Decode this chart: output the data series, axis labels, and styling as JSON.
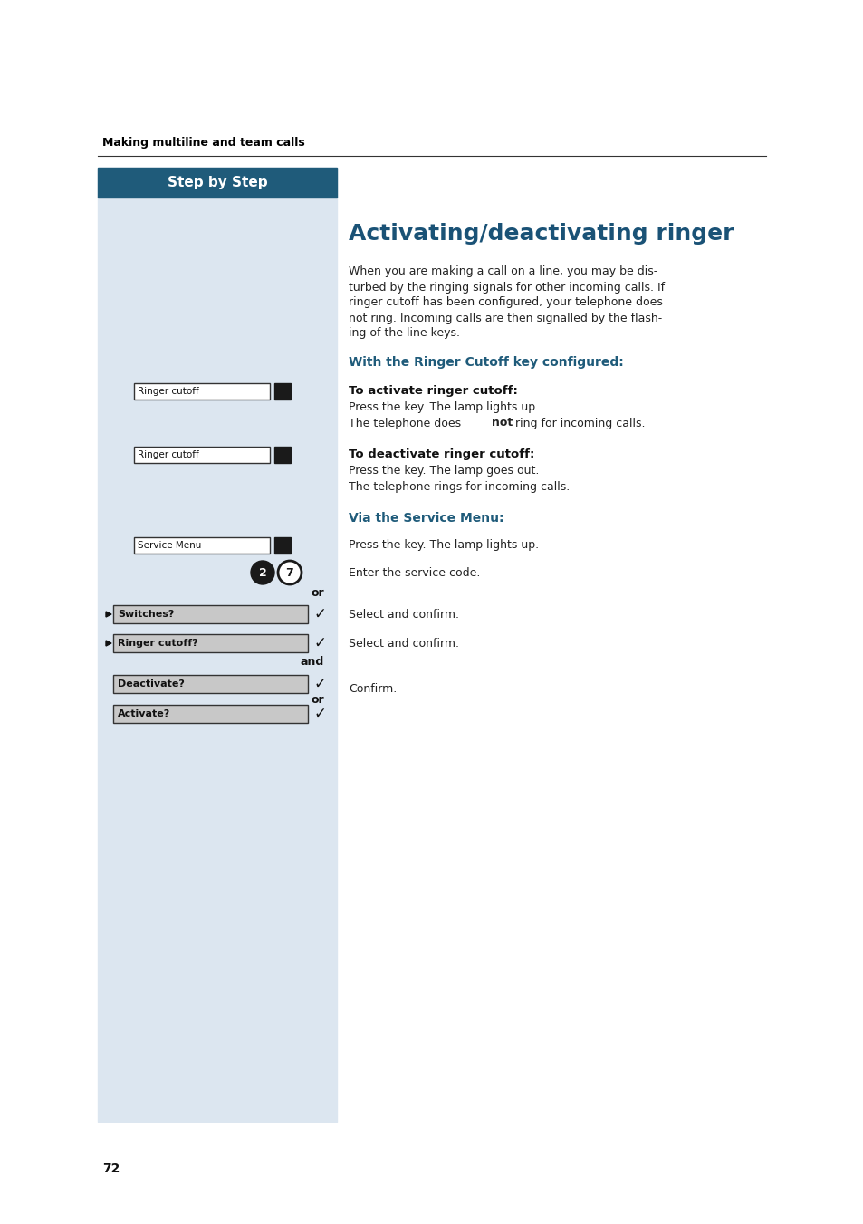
{
  "page_bg": "#ffffff",
  "left_panel_bg": "#dce6f0",
  "header_bg": "#1f5b7a",
  "header_text": "Step by Step",
  "header_text_color": "#ffffff",
  "section_header_color": "#1f5b7a",
  "top_label": "Making multiline and team calls",
  "title": "Activating/deactivating ringer",
  "title_color": "#1a5276",
  "intro_text_lines": [
    "When you are making a call on a line, you may be dis-",
    "turbed by the ringing signals for other incoming calls. If",
    "ringer cutoff has been configured, your telephone does",
    "not ring. Incoming calls are then signalled by the flash-",
    "ing of the line keys."
  ],
  "section1_header": "With the Ringer Cutoff key configured:",
  "activate_label": "To activate ringer cutoff:",
  "deactivate_label": "To deactivate ringer cutoff:",
  "section2_header": "Via the Service Menu:",
  "service_menu_text": "Press the key. The lamp lights up.",
  "code_text": "Enter the service code.",
  "or_text1": "or",
  "switches_text": "Select and confirm.",
  "ringer_cutoff_text": "Select and confirm.",
  "and_text": "and",
  "confirm_text": "Confirm.",
  "or_text2": "or",
  "page_number": "72",
  "dark_square_color": "#1a1a1a",
  "circle_bg": "#1a1a1a",
  "circle_text_color": "#ffffff",
  "btn_bg": "#c8c8c8",
  "btn_border": "#333333"
}
